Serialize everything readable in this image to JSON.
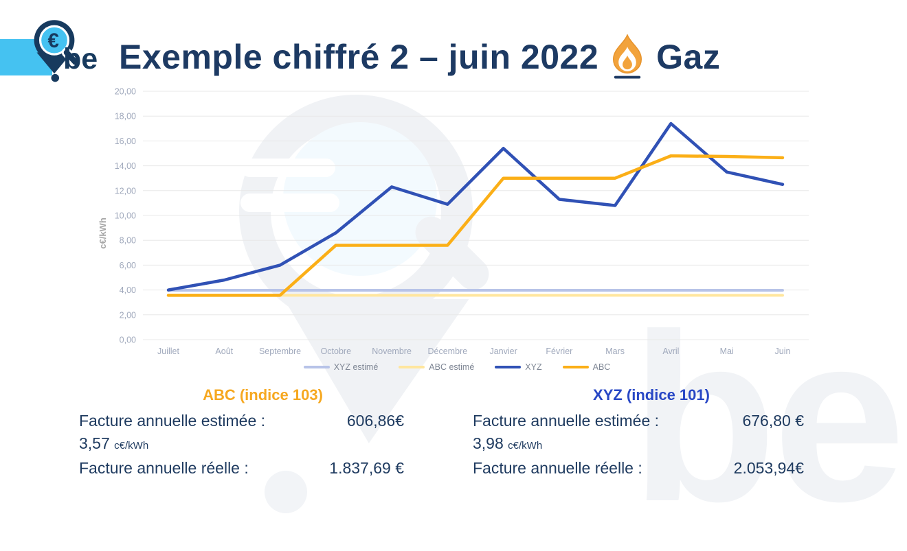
{
  "header": {
    "logo": {
      "text": "be",
      "pin_icon": "euro-magnifier-pin-icon",
      "accent_color": "#45c2f1"
    },
    "title": "Exemple chiffré 2 – juin 2022",
    "flame_icon": "gas-flame-icon",
    "title_suffix": "Gaz"
  },
  "chart_data": {
    "type": "line",
    "title": "",
    "xlabel": "",
    "ylabel": "c€/kWh",
    "ylim": [
      0,
      20
    ],
    "ytick_step": 2,
    "y_ticks": [
      "0,00",
      "2,00",
      "4,00",
      "6,00",
      "8,00",
      "10,00",
      "12,00",
      "14,00",
      "16,00",
      "18,00",
      "20,00"
    ],
    "grid": true,
    "legend_position": "bottom",
    "categories": [
      "Juillet",
      "Août",
      "Septembre",
      "Octobre",
      "Novembre",
      "Décembre",
      "Janvier",
      "Février",
      "Mars",
      "Avril",
      "Mai",
      "Juin"
    ],
    "series": [
      {
        "name": "XYZ estimé",
        "color": "#b7c3e8",
        "width": 4,
        "values": [
          3.98,
          3.98,
          3.98,
          3.98,
          3.98,
          3.98,
          3.98,
          3.98,
          3.98,
          3.98,
          3.98,
          3.98
        ]
      },
      {
        "name": "ABC estimé",
        "color": "#ffe69e",
        "width": 4,
        "values": [
          3.57,
          3.57,
          3.57,
          3.57,
          3.57,
          3.57,
          3.57,
          3.57,
          3.57,
          3.57,
          3.57,
          3.57
        ]
      },
      {
        "name": "XYZ",
        "color": "#3051b5",
        "width": 4.5,
        "values": [
          4.0,
          4.8,
          6.0,
          8.6,
          12.3,
          10.9,
          15.4,
          11.3,
          10.8,
          17.4,
          13.5,
          12.5
        ]
      },
      {
        "name": "ABC",
        "color": "#fbaf17",
        "width": 4.5,
        "values": [
          3.57,
          3.57,
          3.57,
          7.6,
          7.6,
          7.6,
          13.0,
          13.0,
          13.0,
          14.8,
          14.75,
          14.65
        ]
      }
    ]
  },
  "panels": {
    "left": {
      "heading": "ABC (indice 103)",
      "heading_color": "#f6a820",
      "estimated_label": "Facture annuelle estimée :",
      "estimated_value": "606,86€",
      "unit_price": "3,57",
      "unit_suffix": "c€/kWh",
      "actual_label": "Facture annuelle réelle :",
      "actual_value": "1.837,69 €"
    },
    "right": {
      "heading": "XYZ (indice 101)",
      "heading_color": "#2847c5",
      "estimated_label": "Facture annuelle estimée :",
      "estimated_value": "676,80 €",
      "unit_price": "3,98",
      "unit_suffix": "c€/kWh",
      "actual_label": "Facture annuelle réelle :",
      "actual_value": "2.053,94€"
    }
  },
  "watermark": {
    "text": "be"
  }
}
